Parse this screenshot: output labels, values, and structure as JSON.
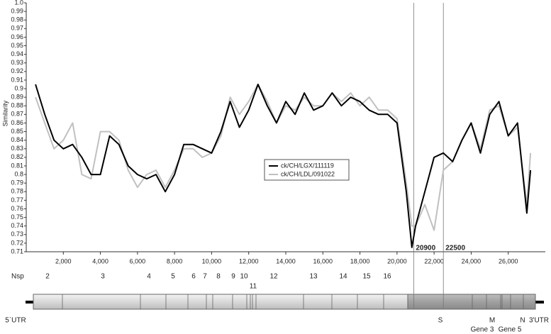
{
  "chart_data": {
    "type": "line",
    "y_label": "Similarity",
    "x": [
      500,
      1000,
      1500,
      2000,
      2500,
      3000,
      3500,
      4000,
      4500,
      5000,
      5500,
      6000,
      6500,
      7000,
      7500,
      8000,
      8500,
      9000,
      9500,
      10000,
      10500,
      11000,
      11500,
      12000,
      12500,
      13000,
      13500,
      14000,
      14500,
      15000,
      15500,
      16000,
      16500,
      17000,
      17500,
      18000,
      18500,
      19000,
      19500,
      20000,
      20500,
      20800,
      21000,
      21500,
      22000,
      22500,
      23000,
      23500,
      24000,
      24500,
      25000,
      25500,
      26000,
      26500,
      27000,
      27200
    ],
    "series": [
      {
        "name": "ck/CH/LGX/111119",
        "color": "#000000",
        "values": [
          0.905,
          0.87,
          0.84,
          0.83,
          0.835,
          0.82,
          0.8,
          0.8,
          0.845,
          0.835,
          0.81,
          0.8,
          0.795,
          0.8,
          0.78,
          0.8,
          0.835,
          0.835,
          0.83,
          0.825,
          0.85,
          0.885,
          0.855,
          0.875,
          0.905,
          0.88,
          0.86,
          0.885,
          0.87,
          0.895,
          0.875,
          0.88,
          0.895,
          0.88,
          0.89,
          0.885,
          0.875,
          0.87,
          0.87,
          0.86,
          0.78,
          0.715,
          0.74,
          0.78,
          0.82,
          0.825,
          0.815,
          0.84,
          0.86,
          0.825,
          0.87,
          0.885,
          0.845,
          0.86,
          0.755,
          0.805
        ]
      },
      {
        "name": "ck/CH/LDL/091022",
        "color": "#c0c0c0",
        "values": [
          0.89,
          0.86,
          0.83,
          0.84,
          0.86,
          0.8,
          0.795,
          0.85,
          0.85,
          0.84,
          0.805,
          0.785,
          0.8,
          0.805,
          0.785,
          0.805,
          0.83,
          0.83,
          0.82,
          0.825,
          0.845,
          0.89,
          0.87,
          0.885,
          0.905,
          0.885,
          0.86,
          0.88,
          0.875,
          0.89,
          0.88,
          0.88,
          0.895,
          0.885,
          0.895,
          0.88,
          0.89,
          0.875,
          0.875,
          0.865,
          0.79,
          0.74,
          0.74,
          0.765,
          0.735,
          0.805,
          0.815,
          0.84,
          0.86,
          0.83,
          0.875,
          0.88,
          0.845,
          0.855,
          0.765,
          0.825
        ]
      }
    ],
    "vlines": [
      20900,
      22500
    ],
    "xlim": [
      0,
      28000
    ],
    "xticks": [
      {
        "value": 2000,
        "label": "2,000"
      },
      {
        "value": 4000,
        "label": "4,000"
      },
      {
        "value": 6000,
        "label": "6,000"
      },
      {
        "value": 8000,
        "label": "8,000"
      },
      {
        "value": 10000,
        "label": "10,000"
      },
      {
        "value": 12000,
        "label": "12,000"
      },
      {
        "value": 14000,
        "label": "14,000"
      },
      {
        "value": 16000,
        "label": "16,000"
      },
      {
        "value": 18000,
        "label": "18,000"
      },
      {
        "value": 20000,
        "label": "20,000"
      },
      {
        "value": 22000,
        "label": "22,000"
      },
      {
        "value": 24000,
        "label": "24,000"
      },
      {
        "value": 26000,
        "label": "26,000"
      }
    ],
    "ylim": [
      0.71,
      1.0
    ],
    "yticks": [
      0.71,
      0.72,
      0.73,
      0.74,
      0.75,
      0.76,
      0.77,
      0.78,
      0.79,
      0.8,
      0.81,
      0.82,
      0.83,
      0.84,
      0.85,
      0.86,
      0.87,
      0.88,
      0.89,
      0.9,
      0.91,
      0.92,
      0.93,
      0.94,
      0.95,
      0.96,
      0.97,
      0.98,
      0.99,
      {
        "value": 1.0,
        "label": "1.0"
      }
    ],
    "grid": false
  },
  "genome_map": {
    "nsp_label": "Nsp",
    "nsp": [
      "2",
      "3",
      "4",
      "5",
      "6",
      "7",
      "8",
      "9",
      "10",
      "11",
      "12",
      "13",
      "14",
      "15",
      "16"
    ],
    "genes": [
      "5`UTR",
      "S",
      "M",
      "Gene 3",
      "Gene 5",
      "N",
      "3'UTR"
    ]
  }
}
